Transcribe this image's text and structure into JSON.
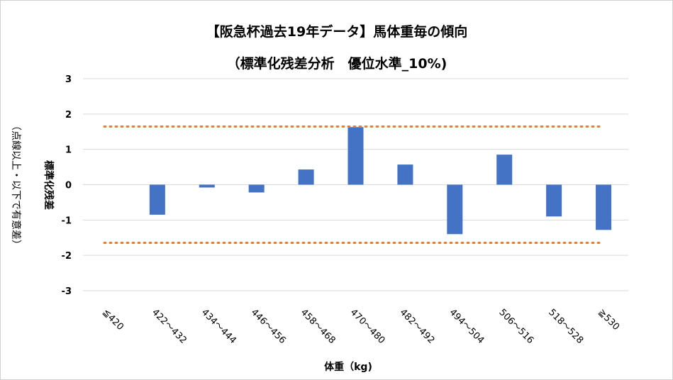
{
  "chart_data": {
    "type": "bar",
    "title": "【阪急杯過去19年データ】馬体重毎の傾向",
    "subtitle": "（標準化残差分析　優位水準_10%)",
    "xlabel": "体重（kg)",
    "ylabel": "標準化残差",
    "ylabel2": "（点線以上・以下で有意差）",
    "categories": [
      "≦420",
      "422～432",
      "434～444",
      "446～456",
      "458～468",
      "470～480",
      "482～492",
      "494～504",
      "506～516",
      "518～528",
      "≧530"
    ],
    "values": [
      0,
      -0.85,
      -0.08,
      -0.22,
      0.43,
      1.63,
      0.57,
      -1.4,
      0.85,
      -0.9,
      -1.28
    ],
    "ylim": [
      -3,
      3
    ],
    "yticks": [
      "3",
      "2",
      "1",
      "0",
      "-1",
      "-2",
      "-3"
    ],
    "threshold": 1.645,
    "grid": true,
    "bar_color": "#4472c4",
    "threshold_color": "#ed7d31"
  }
}
